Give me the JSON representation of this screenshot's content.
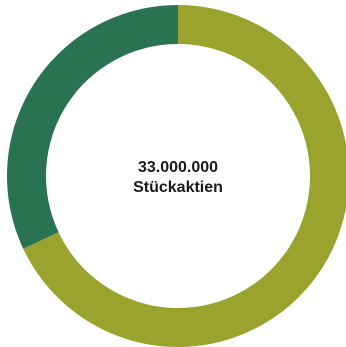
{
  "chart_data": {
    "type": "pie",
    "categories": [
      "",
      ""
    ],
    "values": [
      68,
      32
    ],
    "colors": [
      "#9aa32d",
      "#2a7352"
    ],
    "center_value": "33.000.000",
    "center_caption": "Stückaktien"
  }
}
